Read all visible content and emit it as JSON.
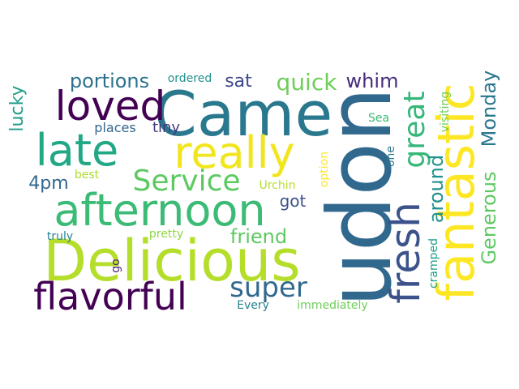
{
  "words": [
    {
      "text": "udon",
      "color": "#31688e"
    },
    {
      "text": "Came",
      "color": "#2a788e"
    },
    {
      "text": "Delicious",
      "color": "#b5de2b"
    },
    {
      "text": "really",
      "color": "#f1e51d"
    },
    {
      "text": "afternoon",
      "color": "#3bbb75"
    },
    {
      "text": "late",
      "color": "#22a884"
    },
    {
      "text": "loved",
      "color": "#440154"
    },
    {
      "text": "fantastic",
      "color": "#fde725"
    },
    {
      "text": "fresh",
      "color": "#3b528b"
    },
    {
      "text": "flavorful",
      "color": "#440154"
    },
    {
      "text": "great",
      "color": "#35b779"
    },
    {
      "text": "Service",
      "color": "#5ec962"
    },
    {
      "text": "super",
      "color": "#31688e"
    },
    {
      "text": "quick",
      "color": "#6ece58"
    },
    {
      "text": "portions",
      "color": "#2c728e"
    },
    {
      "text": "whim",
      "color": "#472d7b"
    },
    {
      "text": "Generous",
      "color": "#5ec962"
    },
    {
      "text": "Monday",
      "color": "#2a788e"
    },
    {
      "text": "around",
      "color": "#21918c"
    },
    {
      "text": "friend",
      "color": "#5ec962"
    },
    {
      "text": "sat",
      "color": "#3e4989"
    },
    {
      "text": "lucky",
      "color": "#1f9e89"
    },
    {
      "text": "4pm",
      "color": "#31688e"
    },
    {
      "text": "got",
      "color": "#3b528b"
    },
    {
      "text": "tiny",
      "color": "#443983"
    },
    {
      "text": "places",
      "color": "#31688e"
    },
    {
      "text": "ordered",
      "color": "#21918c"
    },
    {
      "text": "best",
      "color": "#addc30"
    },
    {
      "text": "truly",
      "color": "#26828e"
    },
    {
      "text": "pretty",
      "color": "#8fd744"
    },
    {
      "text": "Urchin",
      "color": "#b5de2b"
    },
    {
      "text": "Sea",
      "color": "#3bbb75"
    },
    {
      "text": "visiting",
      "color": "#6ece58"
    },
    {
      "text": "cramped",
      "color": "#1f9e89"
    },
    {
      "text": "option",
      "color": "#fde725"
    },
    {
      "text": "one",
      "color": "#2a788e"
    },
    {
      "text": "go",
      "color": "#481f70"
    },
    {
      "text": "Every",
      "color": "#26828e"
    },
    {
      "text": "immediately",
      "color": "#6ece58"
    }
  ]
}
